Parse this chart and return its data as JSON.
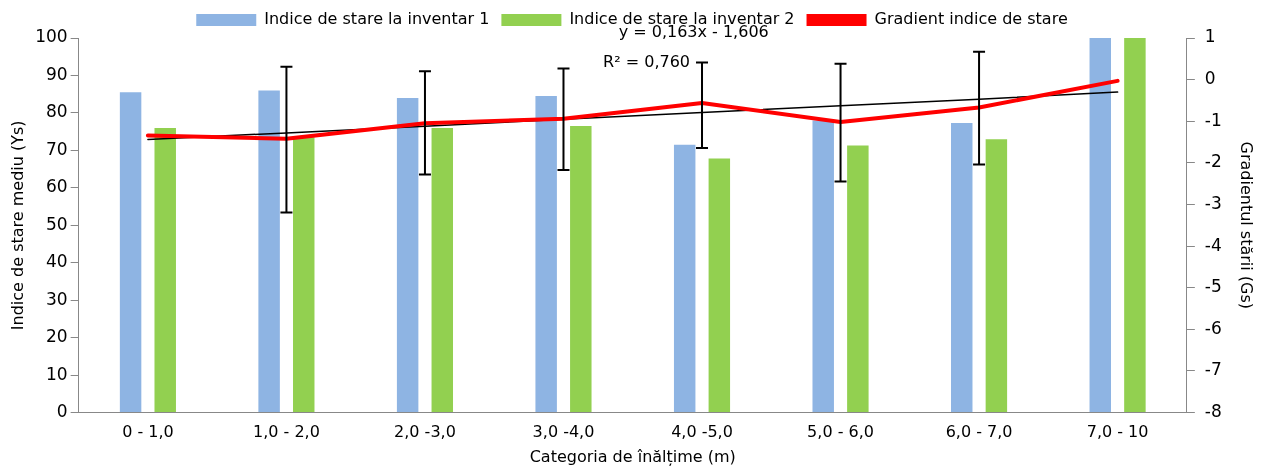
{
  "chart_data": {
    "type": "bar",
    "xlabel": "Categoria de înălțime (m)",
    "ylabel": "Indice de stare mediu (Ys)",
    "y2label": "Gradientul stării (Gs)",
    "categories": [
      "0 - 1,0",
      "1,0 - 2,0",
      "2,0 -3,0",
      "3,0 -4,0",
      "4,0 -5,0",
      "5,0 - 6,0",
      "6,0 - 7,0",
      "7,0 - 10"
    ],
    "series": [
      {
        "name": "Indice de stare la inventar 1",
        "color": "#8eb4e3",
        "values": [
          85.5,
          86,
          84,
          84.5,
          71.5,
          78,
          77.3,
          100
        ]
      },
      {
        "name": "Indice de stare la inventar 2",
        "color": "#92d050",
        "values": [
          76,
          73.5,
          76,
          76.5,
          67.8,
          71.3,
          73,
          100
        ]
      },
      {
        "name": "Gradient indice de stare",
        "type": "line",
        "axis": "y2",
        "color": "#ff0000",
        "values": [
          -1.34,
          -1.42,
          -1.05,
          -0.94,
          -0.56,
          -1.02,
          -0.67,
          -0.03
        ],
        "errors": [
          null,
          [
            -3.19,
            0.31
          ],
          [
            -2.28,
            0.2
          ],
          [
            -2.17,
            0.27
          ],
          [
            -1.64,
            0.41
          ],
          [
            -2.45,
            0.38
          ],
          [
            -2.04,
            0.67
          ],
          null
        ]
      },
      {
        "type": "line",
        "axis": "y2",
        "color": "#000000",
        "values": [
          -1.44,
          -1.28,
          -1.12,
          -0.95,
          -0.79,
          -0.63,
          -0.47,
          -0.3
        ]
      }
    ],
    "ylim": [
      0,
      100
    ],
    "yticks": [
      0,
      10,
      20,
      30,
      40,
      50,
      60,
      70,
      80,
      90,
      100
    ],
    "y2lim": [
      -8,
      1
    ],
    "y2ticks": [
      -8,
      -7,
      -6,
      -5,
      -4,
      -3,
      -2,
      -1,
      0,
      1
    ],
    "annotations": [
      "y = 0,163x - 1,606",
      "R² = 0,760"
    ],
    "grid": false,
    "legend": "top",
    "marker": "none",
    "line_style": "solid"
  }
}
